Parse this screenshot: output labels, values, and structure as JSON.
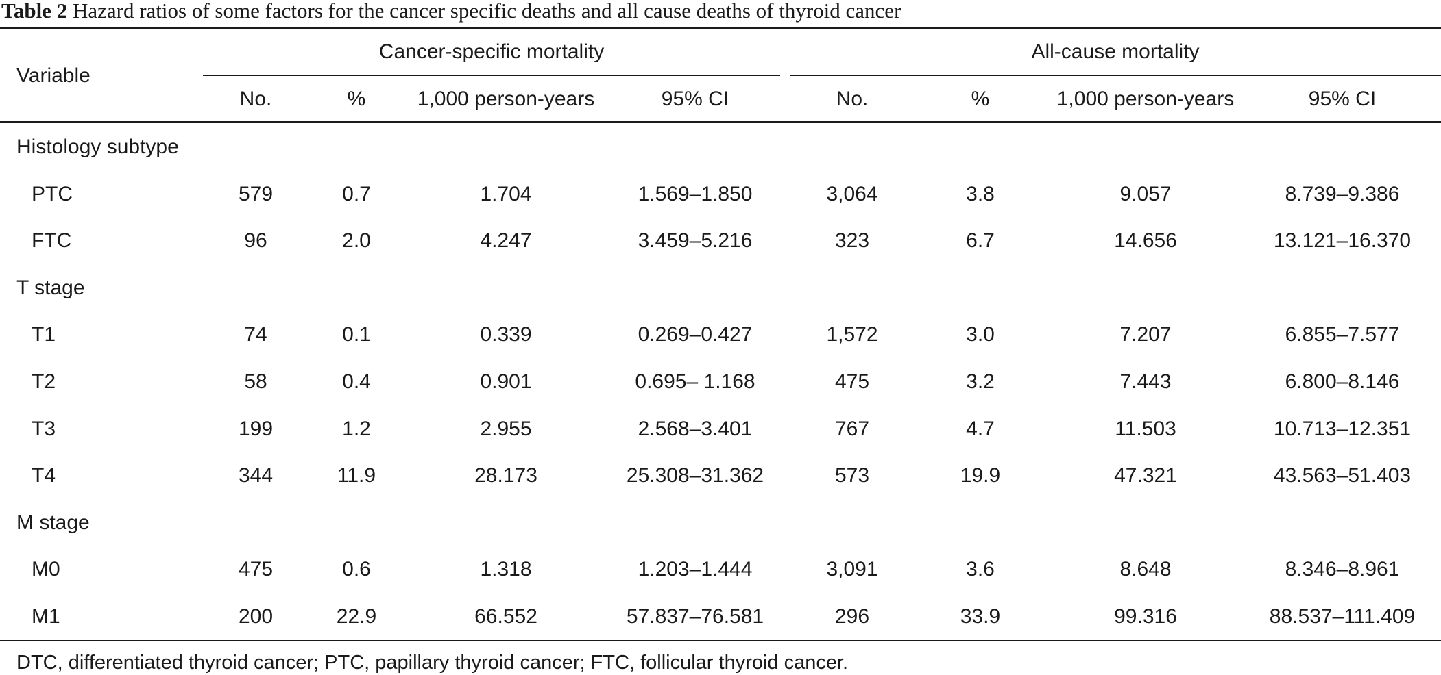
{
  "caption": {
    "label": "Table 2",
    "text": "Hazard ratios of some factors for the cancer specific deaths and all cause deaths of thyroid cancer"
  },
  "header": {
    "variable": "Variable",
    "group1": "Cancer-specific mortality",
    "group2": "All-cause mortality",
    "subcols": [
      "No.",
      "%",
      "1,000 person-years",
      "95% CI",
      "No.",
      "%",
      "1,000 person-years",
      "95% CI"
    ]
  },
  "rows": [
    {
      "type": "group",
      "label": "Histology subtype"
    },
    {
      "type": "data",
      "label": "PTC",
      "values": [
        "579",
        "0.7",
        "1.704",
        "1.569–1.850",
        "3,064",
        "3.8",
        "9.057",
        "8.739–9.386"
      ]
    },
    {
      "type": "data",
      "label": "FTC",
      "values": [
        "96",
        "2.0",
        "4.247",
        "3.459–5.216",
        "323",
        "6.7",
        "14.656",
        "13.121–16.370"
      ]
    },
    {
      "type": "group",
      "label": "T stage"
    },
    {
      "type": "data",
      "label": "T1",
      "values": [
        "74",
        "0.1",
        "0.339",
        "0.269–0.427",
        "1,572",
        "3.0",
        "7.207",
        "6.855–7.577"
      ]
    },
    {
      "type": "data",
      "label": "T2",
      "values": [
        "58",
        "0.4",
        "0.901",
        "0.695– 1.168",
        "475",
        "3.2",
        "7.443",
        "6.800–8.146"
      ]
    },
    {
      "type": "data",
      "label": "T3",
      "values": [
        "199",
        "1.2",
        "2.955",
        "2.568–3.401",
        "767",
        "4.7",
        "11.503",
        "10.713–12.351"
      ]
    },
    {
      "type": "data",
      "label": "T4",
      "values": [
        "344",
        "11.9",
        "28.173",
        "25.308–31.362",
        "573",
        "19.9",
        "47.321",
        "43.563–51.403"
      ]
    },
    {
      "type": "group",
      "label": "M stage"
    },
    {
      "type": "data",
      "label": "M0",
      "values": [
        "475",
        "0.6",
        "1.318",
        "1.203–1.444",
        "3,091",
        "3.6",
        "8.648",
        "8.346–8.961"
      ]
    },
    {
      "type": "data",
      "label": "M1",
      "values": [
        "200",
        "22.9",
        "66.552",
        "57.837–76.581",
        "296",
        "33.9",
        "99.316",
        "88.537–111.409"
      ]
    }
  ],
  "footnote": "DTC, differentiated thyroid cancer; PTC, papillary thyroid cancer; FTC, follicular thyroid cancer."
}
